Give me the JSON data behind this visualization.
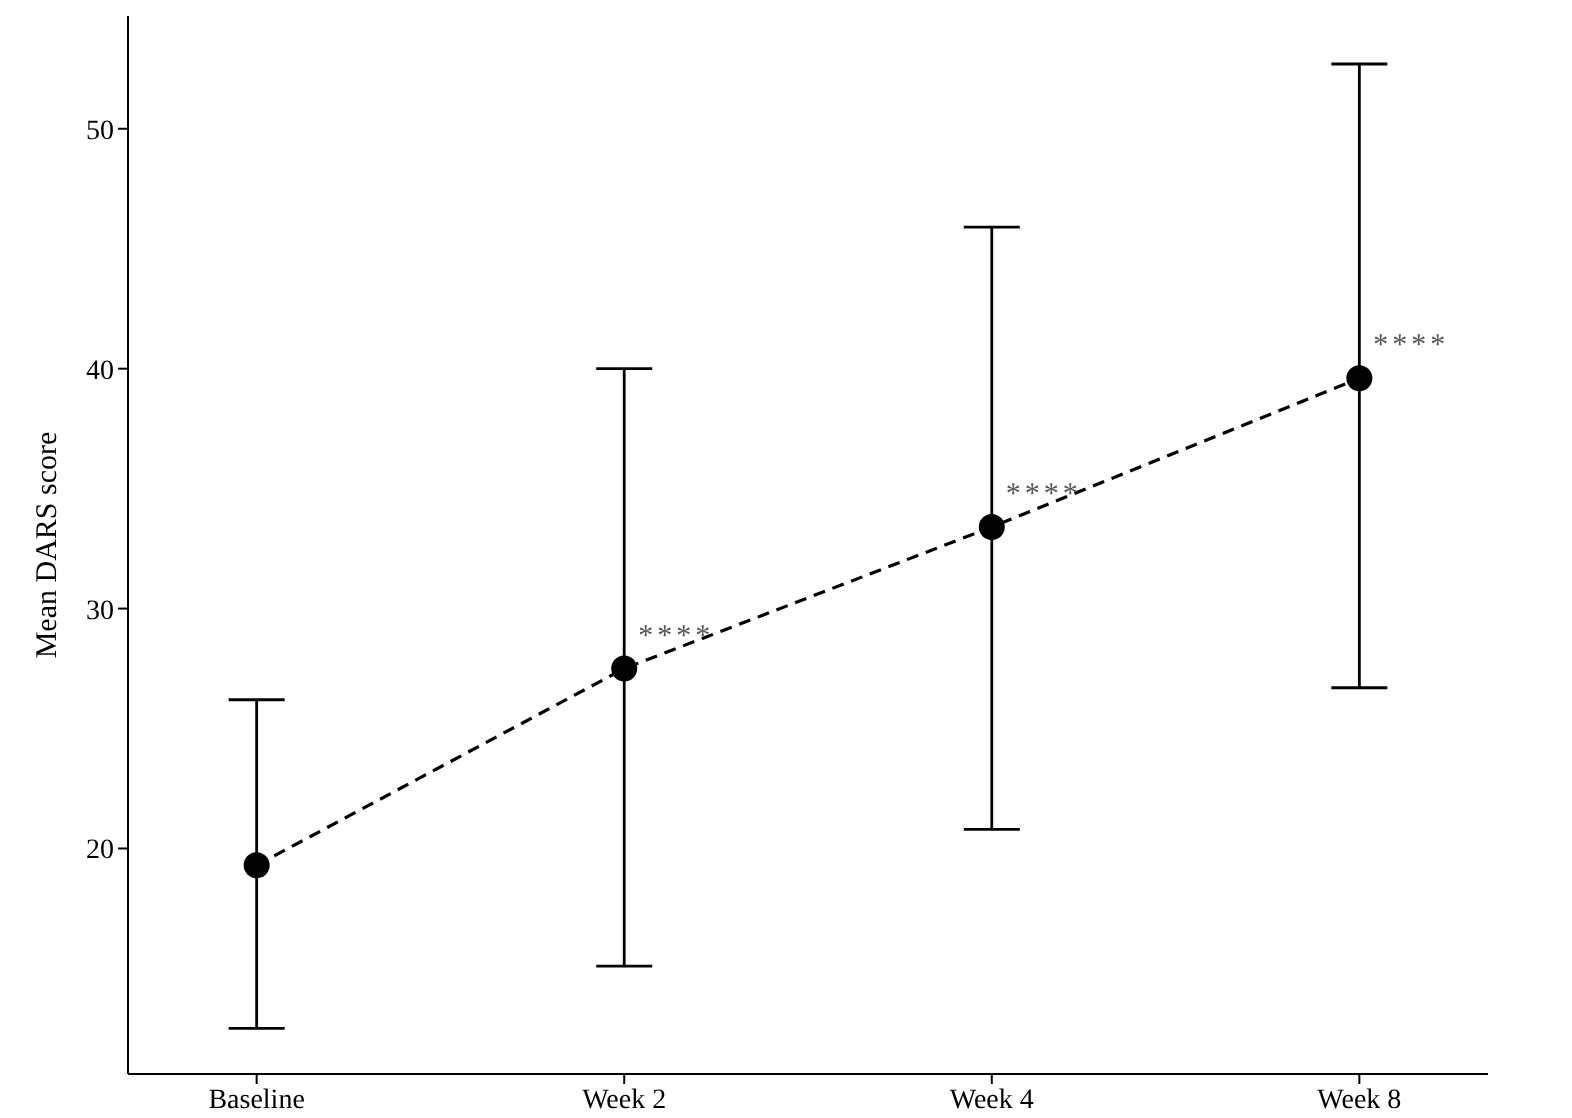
{
  "chart_data": {
    "type": "line",
    "ylabel": "Mean DARS score",
    "categories": [
      "Baseline",
      "Week 2",
      "Week 4",
      "Week 8"
    ],
    "ylim": [
      10.6,
      54.7
    ],
    "yticks": [
      20,
      30,
      40,
      50
    ],
    "series": [
      {
        "color": "#000000",
        "values": [
          19.3,
          27.5,
          33.4,
          39.6
        ],
        "errors": [
          [
            12.5,
            26.2
          ],
          [
            15.1,
            40.0
          ],
          [
            20.8,
            45.9
          ],
          [
            26.7,
            52.7
          ]
        ]
      }
    ],
    "annotations": [
      {
        "text": "****",
        "x": "Week 2",
        "y": 27.5
      },
      {
        "text": "****",
        "x": "Week 4",
        "y": 33.4
      },
      {
        "text": "****",
        "x": "Week 8",
        "y": 39.6
      }
    ],
    "marker": "circle",
    "line_style": "dashed",
    "grid": false,
    "legend": false
  }
}
